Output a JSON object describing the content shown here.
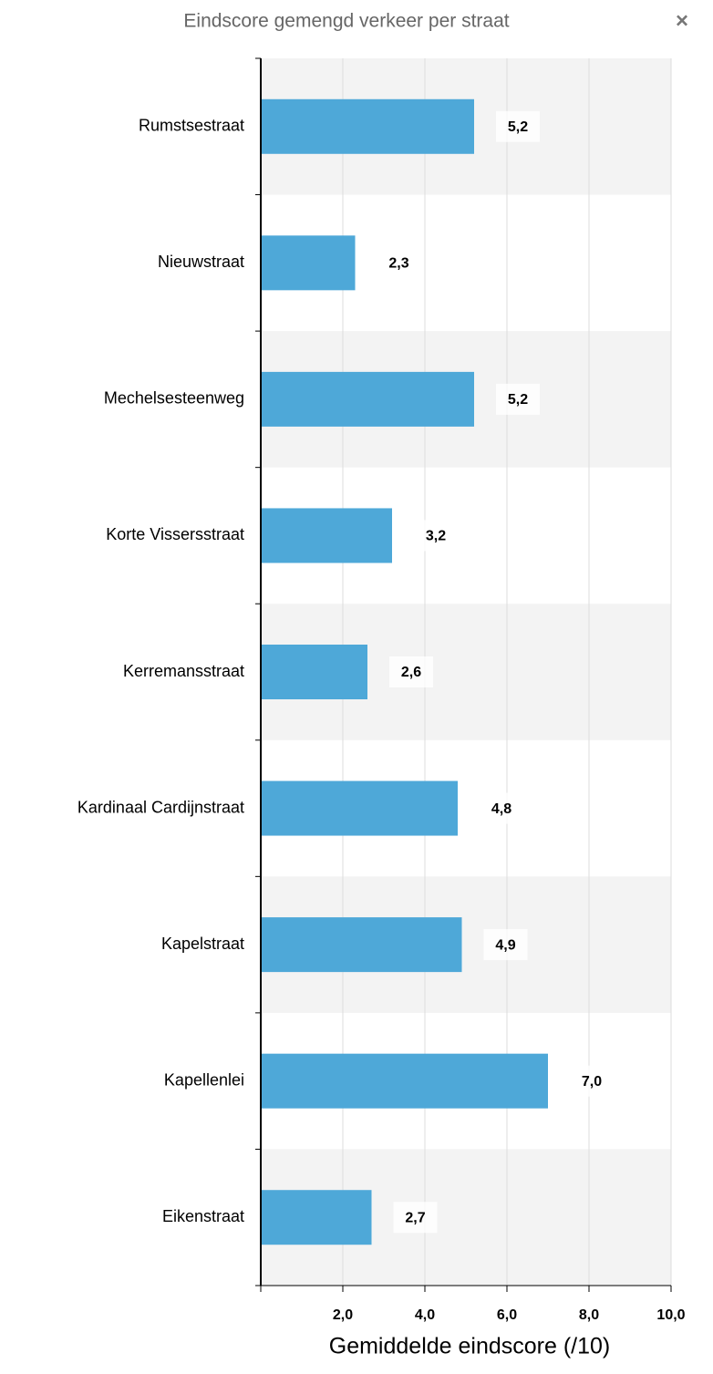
{
  "chart_data": {
    "type": "bar",
    "orientation": "horizontal",
    "title": "Eindscore gemengd verkeer per straat",
    "close_label": "×",
    "categories": [
      "Rumstsestraat",
      "Nieuwstraat",
      "Mechelsesteenweg",
      "Korte Vissersstraat",
      "Kerremansstraat",
      "Kardinaal Cardijnstraat",
      "Kapelstraat",
      "Kapellenlei",
      "Eikenstraat"
    ],
    "values": [
      5.2,
      2.3,
      5.2,
      3.2,
      2.6,
      4.8,
      4.9,
      7.0,
      2.7
    ],
    "value_labels": [
      "5,2",
      "2,3",
      "5,2",
      "3,2",
      "2,6",
      "4,8",
      "4,9",
      "7,0",
      "2,7"
    ],
    "color": "#4ea8d8",
    "xlim": [
      0,
      10
    ],
    "xticks": [
      {
        "value": 2,
        "label": "2,0"
      },
      {
        "value": 4,
        "label": "4,0"
      },
      {
        "value": 6,
        "label": "6,0"
      },
      {
        "value": 8,
        "label": "8,0"
      },
      {
        "value": 10,
        "label": "10,0"
      }
    ],
    "xlabel": "Gemiddelde eindscore (/10)",
    "grid": true
  }
}
